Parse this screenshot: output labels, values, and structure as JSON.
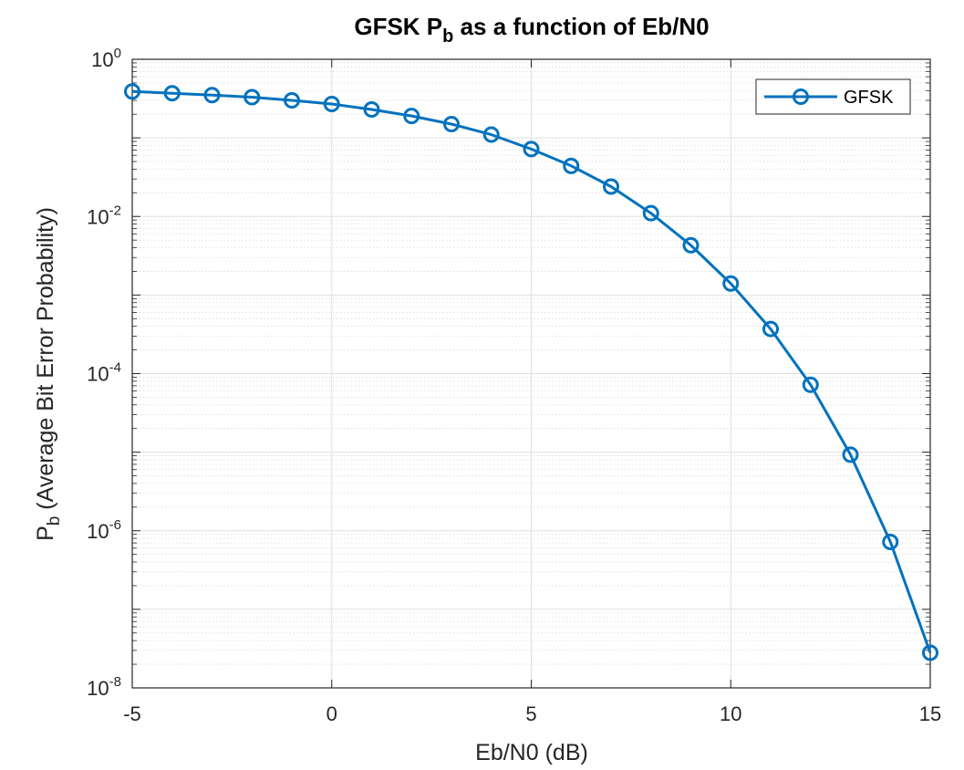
{
  "chart_data": {
    "type": "line",
    "title": "GFSK P",
    "title_subscript": "b",
    "title_suffix": " as a function of Eb/N0",
    "xlabel": "Eb/N0 (dB)",
    "ylabel_main": "P",
    "ylabel_subscript": "b",
    "ylabel_suffix": "  (Average Bit Error Probability)",
    "xlim": [
      -5,
      15
    ],
    "ylim": [
      1e-08,
      1
    ],
    "yscale": "log",
    "grid": true,
    "minor_grid": true,
    "legend_position": "top-right",
    "x_ticks": [
      "-5",
      "0",
      "5",
      "10",
      "15"
    ],
    "y_ticks": [
      {
        "base": "10",
        "exp": "0"
      },
      {
        "base": "10",
        "exp": "-2"
      },
      {
        "base": "10",
        "exp": "-4"
      },
      {
        "base": "10",
        "exp": "-6"
      },
      {
        "base": "10",
        "exp": "-8"
      }
    ],
    "series": [
      {
        "name": "GFSK",
        "color": "#0072BD",
        "marker": "circle",
        "x": [
          -5,
          -4,
          -3,
          -2,
          -1,
          0,
          1,
          2,
          3,
          4,
          5,
          6,
          7,
          8,
          9,
          10,
          11,
          12,
          13,
          14,
          15
        ],
        "y": [
          0.39,
          0.37,
          0.35,
          0.33,
          0.3,
          0.27,
          0.23,
          0.19,
          0.15,
          0.11,
          0.072,
          0.044,
          0.024,
          0.011,
          0.0043,
          0.0014,
          0.00037,
          7.2e-05,
          9.3e-06,
          7.2e-07,
          2.8e-08
        ]
      }
    ]
  }
}
